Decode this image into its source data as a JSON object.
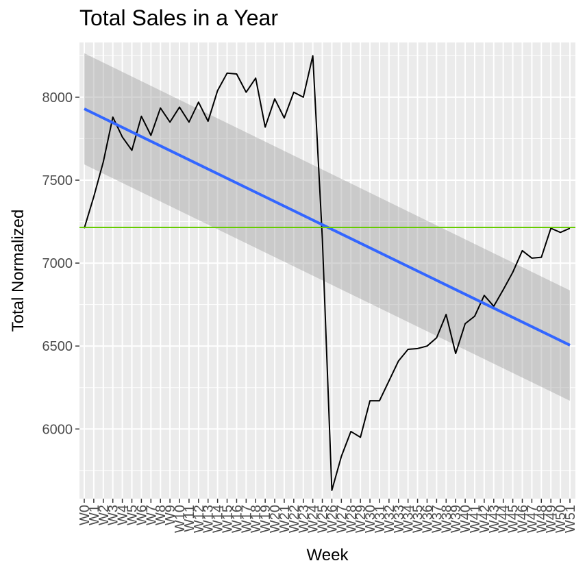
{
  "chart_data": {
    "type": "line",
    "title": "Total Sales in a Year",
    "xlabel": "Week",
    "ylabel": "Total Normalized",
    "categories": [
      "W0",
      "W1",
      "W2",
      "W3",
      "W4",
      "W5",
      "W6",
      "W7",
      "W8",
      "W9",
      "W10",
      "W11",
      "W12",
      "W13",
      "W14",
      "W15",
      "W16",
      "W17",
      "W18",
      "W19",
      "W20",
      "W21",
      "W22",
      "W23",
      "W24",
      "W25",
      "W26",
      "W27",
      "W28",
      "W29",
      "W30",
      "W31",
      "W32",
      "W33",
      "W34",
      "W35",
      "W36",
      "W37",
      "W38",
      "W39",
      "W40",
      "W41",
      "W42",
      "W43",
      "W44",
      "W45",
      "W46",
      "W47",
      "W48",
      "W49",
      "W50",
      "W51"
    ],
    "ylim": [
      5580,
      8330
    ],
    "yticks": [
      6000,
      6500,
      7000,
      7500,
      8000
    ],
    "grid": true,
    "series": [
      {
        "values": [
          7210,
          7400,
          7610,
          7880,
          7760,
          7680,
          7885,
          7770,
          7935,
          7850,
          7940,
          7850,
          7970,
          7855,
          8040,
          8145,
          8140,
          8030,
          8115,
          7820,
          7990,
          7875,
          8030,
          8000,
          8250,
          7150,
          5630,
          5835,
          5985,
          5950,
          6170,
          6170,
          6290,
          6410,
          6480,
          6485,
          6500,
          6550,
          6690,
          6455,
          6635,
          6680,
          6805,
          6740,
          6840,
          6945,
          7075,
          7030,
          7035,
          7210,
          7185,
          7210
        ],
        "color": "#000000"
      }
    ],
    "trend": {
      "start": 7930,
      "end": 6505,
      "band_upper_start": 8265,
      "band_upper_end": 6835,
      "band_lower_start": 7595,
      "band_lower_end": 6170,
      "color": "#3366ff"
    },
    "reference_line": {
      "value": 7215,
      "color": "#66cc00"
    }
  }
}
